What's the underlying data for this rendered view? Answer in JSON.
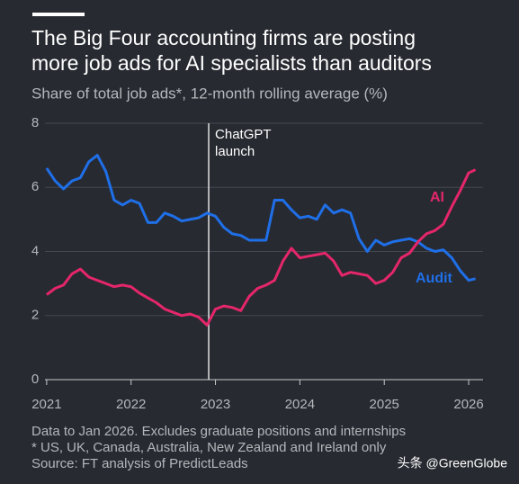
{
  "chart_data": {
    "type": "line",
    "title": [
      "The Big Four accounting firms are posting",
      "more job ads for AI specialists than auditors"
    ],
    "subtitle": "Share of total job ads*, 12-month rolling average (%)",
    "x": [
      2021.0,
      2021.1,
      2021.2,
      2021.3,
      2021.4,
      2021.5,
      2021.6,
      2021.7,
      2021.8,
      2021.9,
      2022.0,
      2022.1,
      2022.2,
      2022.3,
      2022.4,
      2022.5,
      2022.6,
      2022.7,
      2022.8,
      2022.9,
      2023.0,
      2023.1,
      2023.2,
      2023.3,
      2023.4,
      2023.5,
      2023.6,
      2023.7,
      2023.8,
      2023.9,
      2024.0,
      2024.1,
      2024.2,
      2024.3,
      2024.4,
      2024.5,
      2024.6,
      2024.7,
      2024.8,
      2024.9,
      2025.0,
      2025.1,
      2025.2,
      2025.3,
      2025.4,
      2025.5,
      2025.6,
      2025.7,
      2025.8,
      2025.9,
      2026.0,
      2026.08
    ],
    "series": [
      {
        "name": "Audit",
        "color": "#1f6fe8",
        "values": [
          6.6,
          6.2,
          5.95,
          6.2,
          6.3,
          6.8,
          7.0,
          6.5,
          5.6,
          5.45,
          5.6,
          5.5,
          4.9,
          4.9,
          5.2,
          5.1,
          4.95,
          5.0,
          5.05,
          5.2,
          5.1,
          4.75,
          4.55,
          4.5,
          4.35,
          4.35,
          4.35,
          5.6,
          5.6,
          5.3,
          5.05,
          5.1,
          5.0,
          5.45,
          5.2,
          5.3,
          5.2,
          4.4,
          4.0,
          4.35,
          4.2,
          4.3,
          4.35,
          4.4,
          4.3,
          4.1,
          4.0,
          4.05,
          3.8,
          3.4,
          3.1,
          3.15
        ]
      },
      {
        "name": "AI",
        "color": "#e5266a",
        "values": [
          2.65,
          2.85,
          2.95,
          3.3,
          3.45,
          3.2,
          3.1,
          3.0,
          2.9,
          2.95,
          2.9,
          2.7,
          2.55,
          2.4,
          2.2,
          2.1,
          2.0,
          2.05,
          1.95,
          1.7,
          2.2,
          2.3,
          2.25,
          2.15,
          2.6,
          2.85,
          2.95,
          3.1,
          3.7,
          4.1,
          3.8,
          3.85,
          3.9,
          3.95,
          3.7,
          3.25,
          3.35,
          3.3,
          3.25,
          3.0,
          3.1,
          3.35,
          3.8,
          3.95,
          4.3,
          4.55,
          4.65,
          4.85,
          5.4,
          5.9,
          6.45,
          6.55
        ]
      }
    ],
    "xlim": [
      2020.98,
      2026.17
    ],
    "xticks": [
      2021,
      2022,
      2023,
      2024,
      2025,
      2026
    ],
    "ylim": [
      0,
      8
    ],
    "yticks": [
      0,
      2,
      4,
      6,
      8
    ],
    "grid": true,
    "annotation": {
      "x": 2022.92,
      "text": [
        "ChatGPT",
        "launch"
      ]
    },
    "notes": [
      "Data to Jan 2026. Excludes graduate positions and internships",
      "* US, UK, Canada, Australia, New Zealand and Ireland only",
      "Source: FT analysis of PredictLeads"
    ],
    "watermark": "头条 @GreenGlobe"
  }
}
